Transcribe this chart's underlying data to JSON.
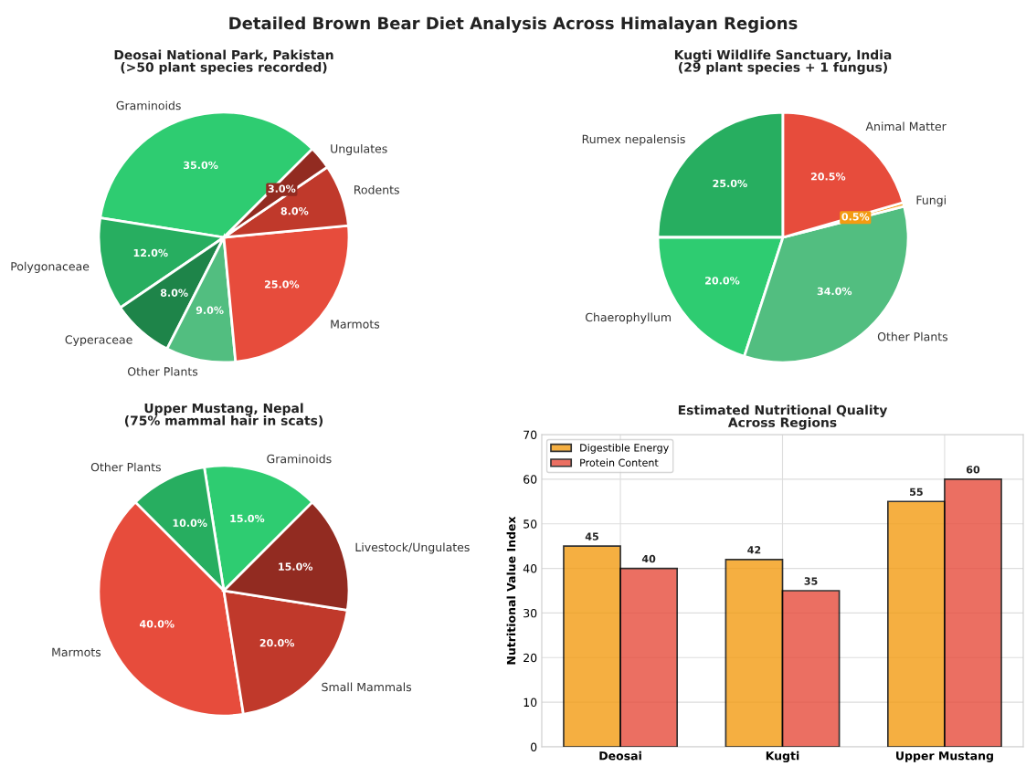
{
  "chart_data": [
    {
      "type": "pie",
      "annotations": [
        "Detailed Brown Bear Diet Analysis Across Himalayan Regions"
      ],
      "title": "Deosai National Park, Pakistan\n(>50 plant species recorded)",
      "categories": [
        "Graminoids",
        "Polygonaceae",
        "Cyperaceae",
        "Other Plants",
        "Marmots",
        "Rodents",
        "Ungulates"
      ],
      "values": [
        35,
        12,
        8,
        9,
        25,
        8,
        3
      ],
      "colors": [
        "#2ecc71",
        "#27ae60",
        "#1e8449",
        "#52be80",
        "#e74c3c",
        "#c0392b",
        "#922b21"
      ],
      "value_labels": [
        "35.0%",
        "12.0%",
        "8.0%",
        "9.0%",
        "25.0%",
        "8.0%",
        "3.0%"
      ]
    },
    {
      "type": "pie",
      "title": "Kugti Wildlife Sanctuary, India\n(29 plant species + 1 fungus)",
      "categories": [
        "Rumex nepalensis",
        "Chaerophyllum",
        "Other Plants",
        "Fungi",
        "Animal Matter"
      ],
      "values": [
        25,
        20,
        34,
        0.5,
        20.5
      ],
      "colors": [
        "#27ae60",
        "#2ecc71",
        "#52be80",
        "#f39c12",
        "#e74c3c"
      ],
      "value_labels": [
        "25.0%",
        "20.0%",
        "34.0%",
        "0.5%",
        "20.5%"
      ]
    },
    {
      "type": "pie",
      "title": "Upper Mustang, Nepal\n(75% mammal hair in scats)",
      "categories": [
        "Graminoids",
        "Other Plants",
        "Marmots",
        "Small Mammals",
        "Livestock/Ungulates"
      ],
      "values": [
        15,
        10,
        40,
        20,
        15
      ],
      "colors": [
        "#2ecc71",
        "#27ae60",
        "#e74c3c",
        "#c0392b",
        "#922b21"
      ],
      "value_labels": [
        "15.0%",
        "10.0%",
        "40.0%",
        "20.0%",
        "15.0%"
      ]
    },
    {
      "type": "bar",
      "title": "Estimated Nutritional Quality\nAcross Regions",
      "ylabel": "Nutritional Value Index",
      "categories": [
        "Deosai",
        "Kugti",
        "Upper Mustang"
      ],
      "series": [
        {
          "name": "Digestible Energy",
          "color": "#f39c12",
          "values": [
            45,
            42,
            55
          ]
        },
        {
          "name": "Protein Content",
          "color": "#e74c3c",
          "values": [
            40,
            35,
            60
          ]
        }
      ],
      "ylim": [
        0,
        70
      ],
      "yticks": [
        0,
        10,
        20,
        30,
        40,
        50,
        60,
        70
      ],
      "grid": true,
      "legend": "top left",
      "data_labels": true
    }
  ]
}
